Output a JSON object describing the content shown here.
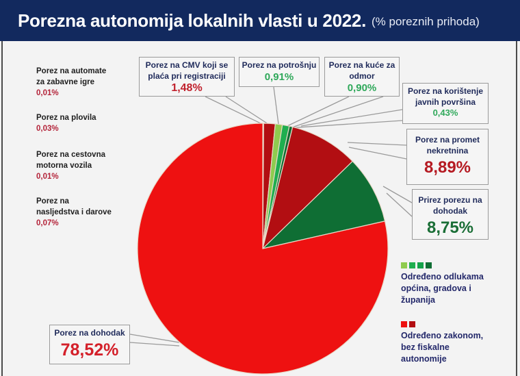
{
  "header": {
    "title": "Porezna autonomija lokalnih vlasti u 2022.",
    "subtitle": "(% poreznih prihoda)"
  },
  "colors": {
    "header_bg": "#12295e",
    "bright_red": "#ee1111",
    "dark_red": "#b20e12",
    "light_green": "#8fcb4f",
    "mid_green": "#1fae4f",
    "green": "#14a24a",
    "dark_green": "#0f6e34",
    "value_red": "#c0202c",
    "value_green": "#2fa85a",
    "value_dark_green": "#1a6e36"
  },
  "side_items": [
    {
      "label": "Porez na automate za zabavne igre",
      "lines": [
        "Porez na automate",
        "za zabavne igre"
      ],
      "value": "0,01%"
    },
    {
      "label": "Porez na plovila",
      "lines": [
        "Porez na plovila"
      ],
      "value": "0,03%"
    },
    {
      "label": "Porez na cestovna motorna vozila",
      "lines": [
        "Porez na cestovna",
        "motorna vozila"
      ],
      "value": "0,01%"
    },
    {
      "label": "Porez na nasljedstva i darove",
      "lines": [
        "Porez na",
        "nasljedstva i darove"
      ],
      "value": "0,07%"
    }
  ],
  "callouts": {
    "cmv": {
      "line1": "Porez na CMV koji se",
      "line2": "plaća pri registraciji",
      "value": "1,48%"
    },
    "potrosnja": {
      "line1": "Porez na potrošnju",
      "value": "0,91%"
    },
    "kuce": {
      "line1": "Porez na kuće za",
      "line2": "odmor",
      "value": "0,90%"
    },
    "povrsine": {
      "line1": "Porez na korištenje",
      "line2": "javnih površina",
      "value": "0,43%"
    },
    "promet": {
      "line1": "Porez na promet",
      "line2": "nekretnina",
      "value": "8,89%"
    },
    "prirez": {
      "line1": "Prirez porezu na",
      "line2": "dohodak",
      "value": "8,75%"
    },
    "dohodak": {
      "line1": "Porez na dohodak",
      "value": "78,52%"
    }
  },
  "legend": [
    {
      "label_lines": [
        "Određeno odlukama",
        "općina, gradova i",
        "županija"
      ],
      "label": "Određeno odlukama općina, gradova i županija",
      "swatches": [
        "#8fcb4f",
        "#1fae4f",
        "#14a24a",
        "#0f6e34"
      ]
    },
    {
      "label_lines": [
        "Određeno zakonom,",
        "bez fiskalne",
        "autonomije"
      ],
      "label": "Određeno zakonom, bez fiskalne autonomije",
      "swatches": [
        "#ee1111",
        "#b20e12"
      ]
    }
  ],
  "chart_data": {
    "type": "pie",
    "title": "Porezna autonomija lokalnih vlasti u 2022.",
    "subtitle": "(% poreznih prihoda)",
    "unit": "%",
    "start_angle_deg": 0,
    "direction": "clockwise",
    "slices": [
      {
        "label": "Porez na automate za zabavne igre",
        "value": 0.01,
        "color": "#ee1111",
        "group": "Određeno zakonom, bez fiskalne autonomije"
      },
      {
        "label": "Porez na plovila",
        "value": 0.03,
        "color": "#ee1111",
        "group": "Određeno zakonom, bez fiskalne autonomije"
      },
      {
        "label": "Porez na cestovna motorna vozila",
        "value": 0.01,
        "color": "#ee1111",
        "group": "Određeno zakonom, bez fiskalne autonomije"
      },
      {
        "label": "Porez na nasljedstva i darove",
        "value": 0.07,
        "color": "#ee1111",
        "group": "Određeno zakonom, bez fiskalne autonomije"
      },
      {
        "label": "Porez na CMV koji se plaća pri registraciji",
        "value": 1.48,
        "color": "#b20e12",
        "group": "Određeno zakonom, bez fiskalne autonomije"
      },
      {
        "label": "Porez na potrošnju",
        "value": 0.91,
        "color": "#8fcb4f",
        "group": "Određeno odlukama općina, gradova i županija"
      },
      {
        "label": "Porez na kuće za odmor",
        "value": 0.9,
        "color": "#1fae4f",
        "group": "Određeno odlukama općina, gradova i županija"
      },
      {
        "label": "Porez na korištenje javnih površina",
        "value": 0.43,
        "color": "#0f6e34",
        "group": "Određeno odlukama općina, gradova i županija"
      },
      {
        "label": "Porez na promet nekretnina",
        "value": 8.89,
        "color": "#b20e12",
        "group": "Određeno zakonom, bez fiskalne autonomije"
      },
      {
        "label": "Prirez porezu na dohodak",
        "value": 8.75,
        "color": "#0f6e34",
        "group": "Određeno odlukama općina, gradova i županija"
      },
      {
        "label": "Porez na dohodak",
        "value": 78.52,
        "color": "#ee1111",
        "group": "Određeno zakonom, bez fiskalne autonomije"
      }
    ],
    "legend": [
      "Određeno odlukama općina, gradova i županija",
      "Određeno zakonom, bez fiskalne autonomije"
    ],
    "legend_position": "right"
  }
}
